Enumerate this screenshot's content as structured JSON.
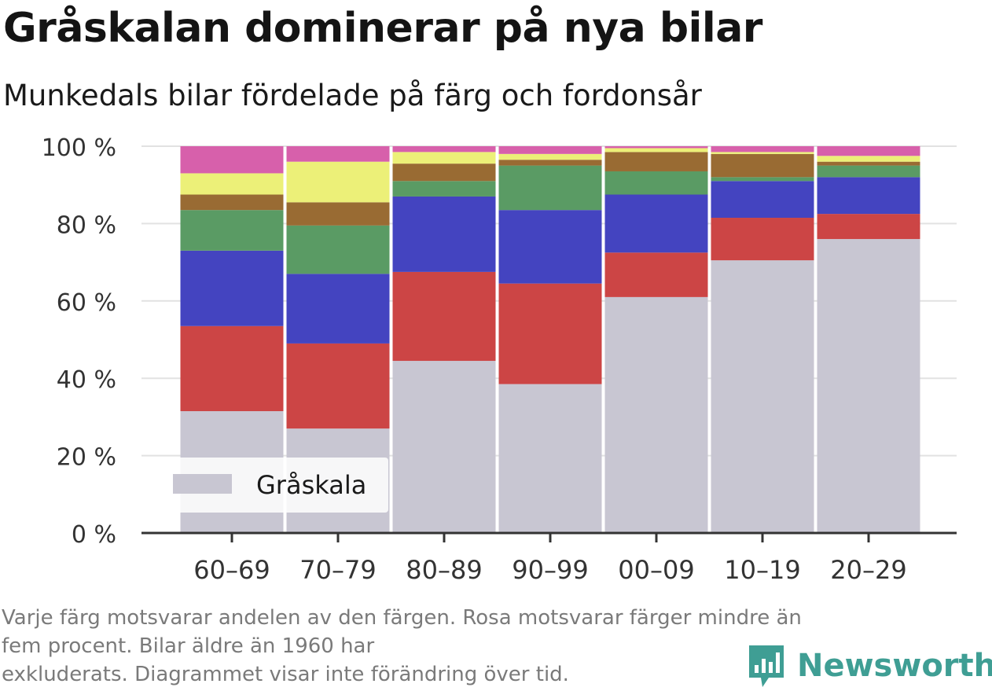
{
  "header": {
    "title": "Gråskalan dominerar på nya bilar",
    "subtitle": "Munkedals bilar fördelade på färg och fordonsår"
  },
  "footnote": {
    "line1": "Varje färg motsvarar andelen av den färgen. Rosa motsvarar färger mindre än",
    "line2": "fem procent. Bilar äldre än 1960 har",
    "line3": "exkluderats. Diagrammet visar inte förändring över tid."
  },
  "brand": {
    "name": "Newsworthy",
    "icon": "newsworthy-logo-icon",
    "color": "#3f9e94"
  },
  "chart_data": {
    "type": "bar",
    "stacked": true,
    "categories": [
      "60–69",
      "70–79",
      "80–89",
      "90–99",
      "00–09",
      "10–19",
      "20–29"
    ],
    "ylim": [
      0,
      100
    ],
    "yticks": [
      0,
      20,
      40,
      60,
      80,
      100
    ],
    "ytick_labels": [
      "0 %",
      "20 %",
      "40 %",
      "60 %",
      "80 %",
      "100 %"
    ],
    "grid": true,
    "legend": {
      "position": "bottom-left",
      "entries": [
        "Gråskala"
      ]
    },
    "series": [
      {
        "name": "Gråskala",
        "color": "#c8c6d2",
        "values": [
          31.5,
          27,
          44.5,
          38.5,
          61,
          70.5,
          76
        ]
      },
      {
        "color": "#cc4545",
        "values": [
          22,
          22,
          23,
          26,
          11.5,
          11,
          6.5
        ]
      },
      {
        "color": "#4444c0",
        "values": [
          19.5,
          18,
          19.5,
          19,
          15,
          9.5,
          9.5
        ]
      },
      {
        "color": "#5a9b64",
        "values": [
          10.5,
          12.5,
          4,
          11.5,
          6,
          1,
          3
        ]
      },
      {
        "color": "#996b33",
        "values": [
          4,
          6,
          4.5,
          1.5,
          5,
          6,
          1
        ]
      },
      {
        "color": "#ecf078",
        "values": [
          5.5,
          10.5,
          3,
          1.5,
          1,
          0.5,
          1.5
        ]
      },
      {
        "color": "#d760ab",
        "values": [
          7,
          4,
          1.5,
          2,
          0.5,
          1.5,
          2.5
        ]
      }
    ]
  }
}
